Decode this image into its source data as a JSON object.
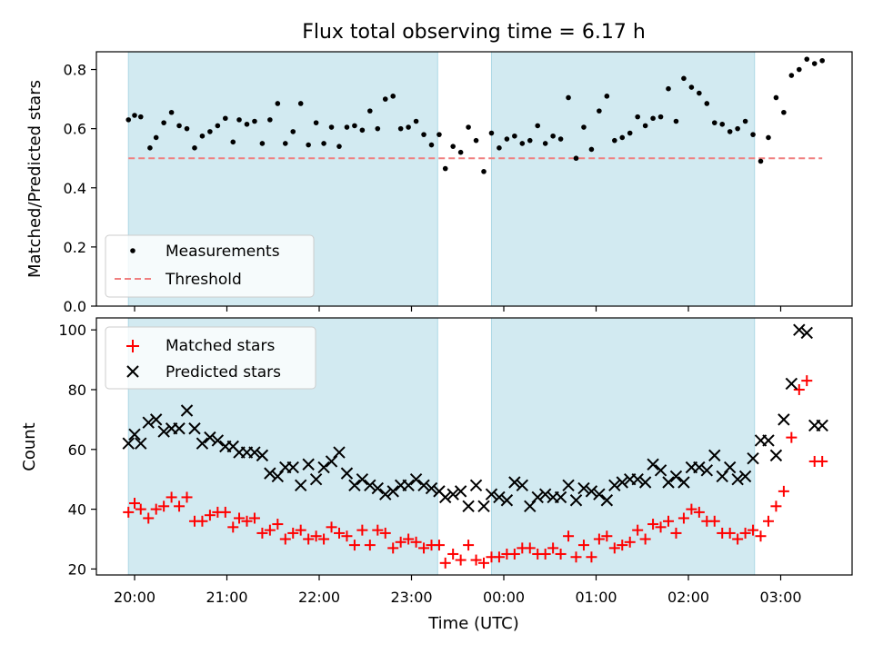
{
  "title": "Flux total observing time = 6.17 h",
  "colors": {
    "shade": "#add8e6",
    "threshold": "#f08080",
    "matched": "#ff0000",
    "predicted": "#000000",
    "measurement": "#000000"
  },
  "chart_data": [
    {
      "type": "scatter",
      "ylabel": "Matched/Predicted stars",
      "xlabel": "",
      "xlim": [
        "19:52",
        "04:04"
      ],
      "ylim": [
        0,
        0.86
      ],
      "yticks": [
        "0.0",
        "0.2",
        "0.4",
        "0.6",
        "0.8"
      ],
      "xticks": [
        "20:00",
        "21:00",
        "22:00",
        "23:00",
        "00:00",
        "01:00",
        "02:00",
        "03:00"
      ],
      "shaded_intervals": [
        [
          "19:56",
          "23:17"
        ],
        [
          "23:52",
          "02:43"
        ]
      ],
      "threshold": 0.5,
      "legend_position": "lower left",
      "legend": [
        "Measurements",
        "Threshold"
      ],
      "series": [
        {
          "name": "Measurements",
          "x": [
            "19:56",
            "20:00",
            "20:04",
            "20:10",
            "20:14",
            "20:19",
            "20:24",
            "20:29",
            "20:34",
            "20:39",
            "20:44",
            "20:49",
            "20:54",
            "20:59",
            "21:04",
            "21:08",
            "21:13",
            "21:18",
            "21:23",
            "21:28",
            "21:33",
            "21:38",
            "21:43",
            "21:48",
            "21:53",
            "21:58",
            "22:03",
            "22:08",
            "22:13",
            "22:18",
            "22:23",
            "22:28",
            "22:33",
            "22:38",
            "22:43",
            "22:48",
            "22:53",
            "22:58",
            "23:03",
            "23:08",
            "23:13",
            "23:18",
            "23:22",
            "23:27",
            "23:32",
            "23:37",
            "23:42",
            "23:47",
            "23:52",
            "23:57",
            "00:02",
            "00:07",
            "00:12",
            "00:17",
            "00:22",
            "00:27",
            "00:32",
            "00:37",
            "00:42",
            "00:47",
            "00:52",
            "00:57",
            "01:02",
            "01:07",
            "01:12",
            "01:17",
            "01:22",
            "01:27",
            "01:32",
            "01:37",
            "01:42",
            "01:47",
            "01:52",
            "01:57",
            "02:02",
            "02:07",
            "02:12",
            "02:17",
            "02:22",
            "02:27",
            "02:32",
            "02:37",
            "02:42",
            "02:47",
            "02:52",
            "02:57",
            "03:02",
            "03:07",
            "03:12",
            "03:17",
            "03:22",
            "03:27"
          ],
          "y": [
            0.63,
            0.645,
            0.64,
            0.535,
            0.57,
            0.62,
            0.655,
            0.61,
            0.6,
            0.535,
            0.575,
            0.59,
            0.61,
            0.635,
            0.555,
            0.63,
            0.615,
            0.625,
            0.55,
            0.63,
            0.685,
            0.55,
            0.59,
            0.685,
            0.545,
            0.62,
            0.55,
            0.605,
            0.54,
            0.605,
            0.61,
            0.595,
            0.66,
            0.6,
            0.7,
            0.71,
            0.6,
            0.605,
            0.625,
            0.58,
            0.545,
            0.58,
            0.465,
            0.54,
            0.52,
            0.605,
            0.56,
            0.455,
            0.585,
            0.535,
            0.565,
            0.575,
            0.55,
            0.56,
            0.61,
            0.55,
            0.575,
            0.565,
            0.705,
            0.5,
            0.605,
            0.53,
            0.66,
            0.71,
            0.56,
            0.57,
            0.585,
            0.64,
            0.61,
            0.635,
            0.64,
            0.735,
            0.625,
            0.77,
            0.74,
            0.72,
            0.685,
            0.62,
            0.615,
            0.59,
            0.6,
            0.625,
            0.58,
            0.49,
            0.57,
            0.705,
            0.655,
            0.78,
            0.8,
            0.835,
            0.82,
            0.83
          ]
        },
        {
          "name": "Threshold",
          "x": [
            "19:56",
            "03:27"
          ],
          "y": [
            0.5,
            0.5
          ]
        }
      ]
    },
    {
      "type": "scatter",
      "ylabel": "Count",
      "xlabel": "Time (UTC)",
      "xlim": [
        "19:52",
        "04:04"
      ],
      "ylim": [
        18,
        104
      ],
      "yticks": [
        "20",
        "40",
        "60",
        "80",
        "100"
      ],
      "xticks": [
        "20:00",
        "21:00",
        "22:00",
        "23:00",
        "00:00",
        "01:00",
        "02:00",
        "03:00"
      ],
      "shaded_intervals": [
        [
          "19:56",
          "23:17"
        ],
        [
          "23:52",
          "02:43"
        ]
      ],
      "legend_position": "upper left",
      "legend": [
        "Matched stars",
        "Predicted stars"
      ],
      "series": [
        {
          "name": "Matched stars",
          "x": [
            "19:56",
            "20:00",
            "20:04",
            "20:09",
            "20:14",
            "20:19",
            "20:24",
            "20:29",
            "20:34",
            "20:39",
            "20:44",
            "20:49",
            "20:54",
            "20:59",
            "21:04",
            "21:08",
            "21:13",
            "21:18",
            "21:23",
            "21:28",
            "21:33",
            "21:38",
            "21:43",
            "21:48",
            "21:53",
            "21:58",
            "22:03",
            "22:08",
            "22:13",
            "22:18",
            "22:23",
            "22:28",
            "22:33",
            "22:38",
            "22:43",
            "22:48",
            "22:53",
            "22:58",
            "23:03",
            "23:08",
            "23:13",
            "23:18",
            "23:22",
            "23:27",
            "23:32",
            "23:37",
            "23:42",
            "23:47",
            "23:52",
            "23:57",
            "00:02",
            "00:07",
            "00:12",
            "00:17",
            "00:22",
            "00:27",
            "00:32",
            "00:37",
            "00:42",
            "00:47",
            "00:52",
            "00:57",
            "01:02",
            "01:07",
            "01:12",
            "01:17",
            "01:22",
            "01:27",
            "01:32",
            "01:37",
            "01:42",
            "01:47",
            "01:52",
            "01:57",
            "02:02",
            "02:07",
            "02:12",
            "02:17",
            "02:22",
            "02:27",
            "02:32",
            "02:37",
            "02:42",
            "02:47",
            "02:52",
            "02:57",
            "03:02",
            "03:07",
            "03:12",
            "03:17",
            "03:22",
            "03:27"
          ],
          "y": [
            39,
            42,
            40,
            37,
            40,
            41,
            44,
            41,
            44,
            36,
            36,
            38,
            39,
            39,
            34,
            37,
            36,
            37,
            32,
            33,
            35,
            30,
            32,
            33,
            30,
            31,
            30,
            34,
            32,
            31,
            28,
            33,
            28,
            33,
            32,
            27,
            29,
            30,
            29,
            27,
            28,
            28,
            22,
            25,
            23,
            28,
            23,
            22,
            24,
            24,
            25,
            25,
            27,
            27,
            25,
            25,
            27,
            25,
            31,
            24,
            28,
            24,
            30,
            31,
            27,
            28,
            29,
            33,
            30,
            35,
            34,
            36,
            32,
            37,
            40,
            39,
            36,
            36,
            32,
            32,
            30,
            32,
            33,
            31,
            36,
            41,
            46,
            64,
            80,
            83,
            56,
            56
          ]
        },
        {
          "name": "Predicted stars",
          "x": [
            "19:56",
            "20:00",
            "20:04",
            "20:09",
            "20:14",
            "20:19",
            "20:24",
            "20:29",
            "20:34",
            "20:39",
            "20:44",
            "20:49",
            "20:54",
            "20:59",
            "21:04",
            "21:08",
            "21:13",
            "21:18",
            "21:23",
            "21:28",
            "21:33",
            "21:38",
            "21:43",
            "21:48",
            "21:53",
            "21:58",
            "22:03",
            "22:08",
            "22:13",
            "22:18",
            "22:23",
            "22:28",
            "22:33",
            "22:38",
            "22:43",
            "22:48",
            "22:53",
            "22:58",
            "23:03",
            "23:08",
            "23:13",
            "23:18",
            "23:22",
            "23:27",
            "23:32",
            "23:37",
            "23:42",
            "23:47",
            "23:52",
            "23:57",
            "00:02",
            "00:07",
            "00:12",
            "00:17",
            "00:22",
            "00:27",
            "00:32",
            "00:37",
            "00:42",
            "00:47",
            "00:52",
            "00:57",
            "01:02",
            "01:07",
            "01:12",
            "01:17",
            "01:22",
            "01:27",
            "01:32",
            "01:37",
            "01:42",
            "01:47",
            "01:52",
            "01:57",
            "02:02",
            "02:07",
            "02:12",
            "02:17",
            "02:22",
            "02:27",
            "02:32",
            "02:37",
            "02:42",
            "02:47",
            "02:52",
            "02:57",
            "03:02",
            "03:07",
            "03:12",
            "03:17",
            "03:22",
            "03:27"
          ],
          "y": [
            62,
            65,
            62,
            69,
            70,
            66,
            67,
            67,
            73,
            67,
            62,
            64,
            63,
            61,
            61,
            59,
            59,
            59,
            58,
            52,
            51,
            54,
            54,
            48,
            55,
            50,
            54,
            56,
            59,
            52,
            48,
            50,
            48,
            47,
            45,
            46,
            48,
            48,
            50,
            48,
            47,
            46,
            44,
            45,
            46,
            41,
            48,
            41,
            45,
            44,
            43,
            49,
            48,
            41,
            44,
            45,
            44,
            44,
            48,
            43,
            47,
            46,
            45,
            43,
            48,
            49,
            50,
            50,
            49,
            55,
            53,
            49,
            51,
            49,
            54,
            54,
            53,
            58,
            51,
            54,
            50,
            51,
            57,
            63,
            63,
            58,
            70,
            82,
            100,
            99,
            68,
            68
          ]
        }
      ]
    }
  ]
}
